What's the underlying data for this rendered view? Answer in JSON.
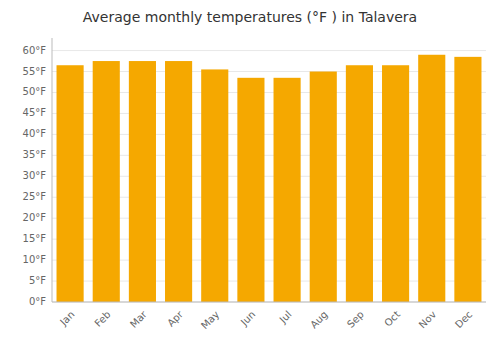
{
  "chart_data": {
    "type": "bar",
    "title": "Average monthly temperatures (°F ) in Talavera",
    "categories": [
      "Jan",
      "Feb",
      "Mar",
      "Apr",
      "May",
      "Jun",
      "Jul",
      "Aug",
      "Sep",
      "Oct",
      "Nov",
      "Dec"
    ],
    "values": [
      56.5,
      57.5,
      57.5,
      57.5,
      55.5,
      53.5,
      53.5,
      55.0,
      56.5,
      56.5,
      59.0,
      58.5
    ],
    "color": "#F5A800",
    "ylim": [
      0,
      63
    ],
    "yticks": [
      {
        "value": 0,
        "label": "0°F"
      },
      {
        "value": 5,
        "label": "5°F"
      },
      {
        "value": 10,
        "label": "10°F"
      },
      {
        "value": 15,
        "label": "15°F"
      },
      {
        "value": 20,
        "label": "20°F"
      },
      {
        "value": 25,
        "label": "25°F"
      },
      {
        "value": 30,
        "label": "30°F"
      },
      {
        "value": 35,
        "label": "35°F"
      },
      {
        "value": 40,
        "label": "40°F"
      },
      {
        "value": 45,
        "label": "45°F"
      },
      {
        "value": 50,
        "label": "50°F"
      },
      {
        "value": 55,
        "label": "55°F"
      },
      {
        "value": 60,
        "label": "60°F"
      }
    ],
    "grid": true
  }
}
